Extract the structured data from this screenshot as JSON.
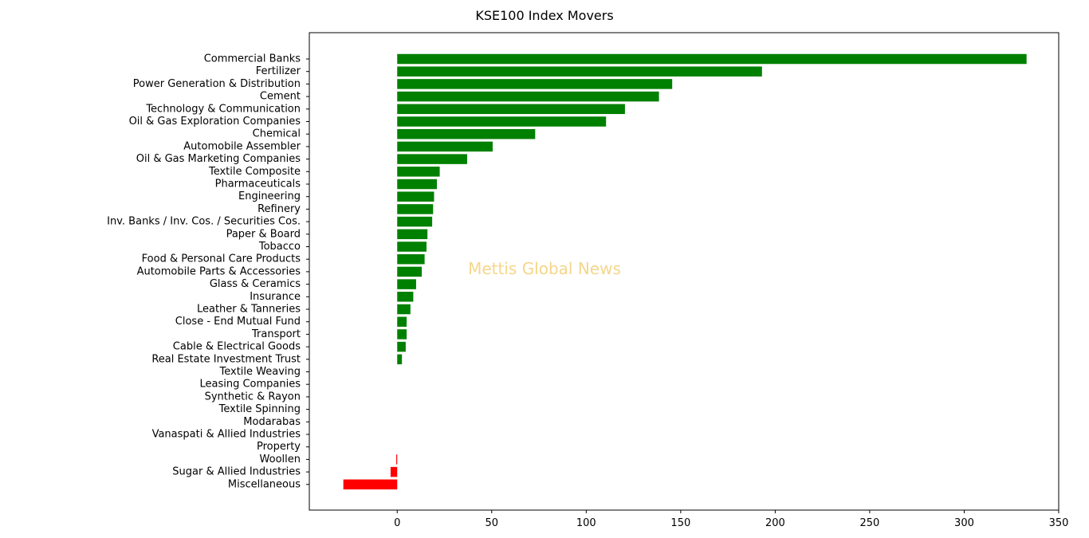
{
  "chart_data": {
    "type": "bar",
    "orientation": "horizontal",
    "title": "KSE100 Index Movers",
    "watermark": "Mettis Global News",
    "categories": [
      "Commercial Banks",
      "Fertilizer",
      "Power Generation & Distribution",
      "Cement",
      "Technology & Communication",
      "Oil & Gas Exploration Companies",
      "Chemical",
      "Automobile Assembler",
      "Oil & Gas Marketing Companies",
      "Textile Composite",
      "Pharmaceuticals",
      "Engineering",
      "Refinery",
      "Inv. Banks / Inv. Cos. / Securities Cos.",
      "Paper & Board",
      "Tobacco",
      "Food & Personal Care Products",
      "Automobile Parts & Accessories",
      "Glass & Ceramics",
      "Insurance",
      "Leather & Tanneries",
      "Close - End Mutual Fund",
      "Transport",
      "Cable & Electrical Goods",
      "Real Estate Investment Trust",
      "Textile Weaving",
      "Leasing Companies",
      "Synthetic & Rayon",
      "Textile Spinning",
      "Modarabas",
      "Vanaspati & Allied Industries",
      "Property",
      "Woollen",
      "Sugar & Allied Industries",
      "Miscellaneous"
    ],
    "values": [
      333,
      193,
      145.5,
      138.5,
      120.5,
      110.5,
      73,
      50.5,
      37,
      22.5,
      21,
      19.5,
      19,
      18.5,
      16,
      15.5,
      14.5,
      13,
      10,
      8.5,
      7,
      5,
      5,
      4.5,
      2.5,
      0,
      0,
      0,
      0,
      0,
      0,
      0,
      -0.5,
      -3.5,
      -28.5
    ],
    "xlim": [
      -46.5,
      350
    ],
    "xticks": [
      0,
      50,
      100,
      150,
      200,
      250,
      300,
      350
    ],
    "colors": {
      "positive": "#008000",
      "negative": "#ff0000",
      "watermark": "#f5d68a"
    }
  }
}
